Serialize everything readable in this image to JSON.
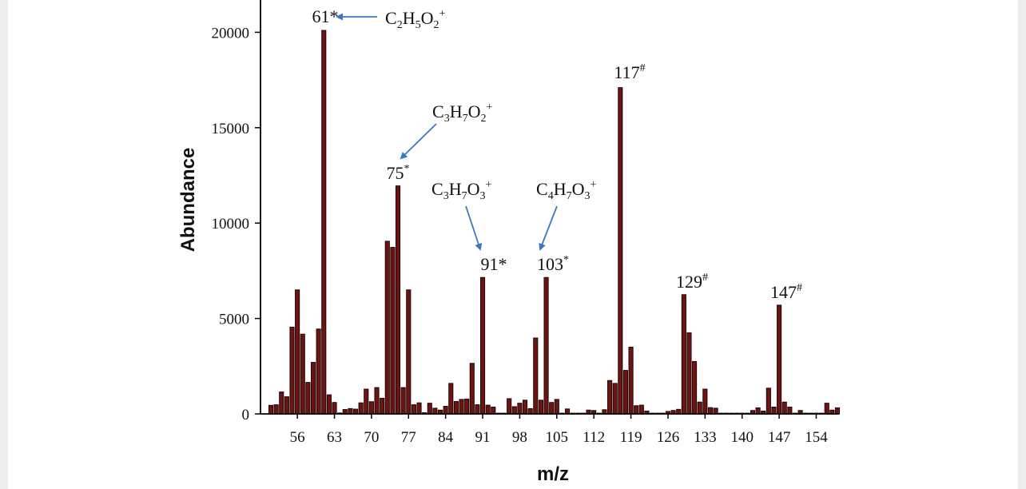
{
  "chart_data": {
    "type": "bar",
    "xlabel": "m/z",
    "ylabel": "Abundance",
    "xlim": [
      51,
      157.5
    ],
    "ylim": [
      0,
      21500
    ],
    "xticks": [
      56,
      63,
      70,
      77,
      84,
      91,
      98,
      105,
      112,
      119,
      126,
      133,
      140,
      147,
      154
    ],
    "yticks": [
      0,
      5000,
      10000,
      15000,
      20000
    ],
    "bar_color": "#6b1414",
    "annotation_color": "#3a78c0",
    "points": [
      {
        "x": 51,
        "y": 450
      },
      {
        "x": 52,
        "y": 480
      },
      {
        "x": 53,
        "y": 1150
      },
      {
        "x": 54,
        "y": 900
      },
      {
        "x": 55,
        "y": 4550
      },
      {
        "x": 56,
        "y": 6500
      },
      {
        "x": 57,
        "y": 4180
      },
      {
        "x": 58,
        "y": 1650
      },
      {
        "x": 59,
        "y": 2700
      },
      {
        "x": 60,
        "y": 4450
      },
      {
        "x": 61,
        "y": 20100
      },
      {
        "x": 62,
        "y": 1000
      },
      {
        "x": 63,
        "y": 600
      },
      {
        "x": 64,
        "y": 50
      },
      {
        "x": 65,
        "y": 230
      },
      {
        "x": 66,
        "y": 280
      },
      {
        "x": 67,
        "y": 250
      },
      {
        "x": 68,
        "y": 580
      },
      {
        "x": 69,
        "y": 1300
      },
      {
        "x": 70,
        "y": 640
      },
      {
        "x": 71,
        "y": 1380
      },
      {
        "x": 72,
        "y": 820
      },
      {
        "x": 73,
        "y": 9050
      },
      {
        "x": 74,
        "y": 8730
      },
      {
        "x": 75,
        "y": 11950
      },
      {
        "x": 76,
        "y": 1380
      },
      {
        "x": 77,
        "y": 6500
      },
      {
        "x": 78,
        "y": 480
      },
      {
        "x": 79,
        "y": 580
      },
      {
        "x": 80,
        "y": 60
      },
      {
        "x": 81,
        "y": 560
      },
      {
        "x": 82,
        "y": 300
      },
      {
        "x": 83,
        "y": 200
      },
      {
        "x": 84,
        "y": 400
      },
      {
        "x": 85,
        "y": 1600
      },
      {
        "x": 86,
        "y": 650
      },
      {
        "x": 87,
        "y": 760
      },
      {
        "x": 88,
        "y": 780
      },
      {
        "x": 89,
        "y": 2650
      },
      {
        "x": 90,
        "y": 480
      },
      {
        "x": 91,
        "y": 7150
      },
      {
        "x": 92,
        "y": 460
      },
      {
        "x": 93,
        "y": 360
      },
      {
        "x": 94,
        "y": 40
      },
      {
        "x": 95,
        "y": 40
      },
      {
        "x": 96,
        "y": 800
      },
      {
        "x": 97,
        "y": 380
      },
      {
        "x": 98,
        "y": 560
      },
      {
        "x": 99,
        "y": 720
      },
      {
        "x": 100,
        "y": 280
      },
      {
        "x": 101,
        "y": 3980
      },
      {
        "x": 102,
        "y": 720
      },
      {
        "x": 103,
        "y": 7150
      },
      {
        "x": 104,
        "y": 600
      },
      {
        "x": 105,
        "y": 760
      },
      {
        "x": 106,
        "y": 40
      },
      {
        "x": 107,
        "y": 260
      },
      {
        "x": 108,
        "y": 40
      },
      {
        "x": 109,
        "y": 40
      },
      {
        "x": 110,
        "y": 40
      },
      {
        "x": 111,
        "y": 200
      },
      {
        "x": 112,
        "y": 180
      },
      {
        "x": 113,
        "y": 40
      },
      {
        "x": 114,
        "y": 220
      },
      {
        "x": 115,
        "y": 1750
      },
      {
        "x": 116,
        "y": 1600
      },
      {
        "x": 117,
        "y": 17100
      },
      {
        "x": 118,
        "y": 2280
      },
      {
        "x": 119,
        "y": 3500
      },
      {
        "x": 120,
        "y": 430
      },
      {
        "x": 121,
        "y": 460
      },
      {
        "x": 122,
        "y": 150
      },
      {
        "x": 123,
        "y": 40
      },
      {
        "x": 124,
        "y": 40
      },
      {
        "x": 125,
        "y": 40
      },
      {
        "x": 126,
        "y": 130
      },
      {
        "x": 127,
        "y": 180
      },
      {
        "x": 128,
        "y": 240
      },
      {
        "x": 129,
        "y": 6250
      },
      {
        "x": 130,
        "y": 4250
      },
      {
        "x": 131,
        "y": 2750
      },
      {
        "x": 132,
        "y": 620
      },
      {
        "x": 133,
        "y": 1300
      },
      {
        "x": 134,
        "y": 330
      },
      {
        "x": 135,
        "y": 300
      },
      {
        "x": 136,
        "y": 40
      },
      {
        "x": 137,
        "y": 40
      },
      {
        "x": 138,
        "y": 40
      },
      {
        "x": 139,
        "y": 40
      },
      {
        "x": 140,
        "y": 40
      },
      {
        "x": 141,
        "y": 40
      },
      {
        "x": 142,
        "y": 180
      },
      {
        "x": 143,
        "y": 320
      },
      {
        "x": 144,
        "y": 150
      },
      {
        "x": 145,
        "y": 1350
      },
      {
        "x": 146,
        "y": 360
      },
      {
        "x": 147,
        "y": 5700
      },
      {
        "x": 148,
        "y": 620
      },
      {
        "x": 149,
        "y": 360
      },
      {
        "x": 150,
        "y": 40
      },
      {
        "x": 151,
        "y": 180
      },
      {
        "x": 152,
        "y": 40
      },
      {
        "x": 153,
        "y": 40
      },
      {
        "x": 154,
        "y": 40
      },
      {
        "x": 155,
        "y": 40
      },
      {
        "x": 156,
        "y": 560
      },
      {
        "x": 157,
        "y": 200
      },
      {
        "x": 158,
        "y": 320
      }
    ],
    "peak_labels": [
      {
        "id": "peak-61",
        "x": 61,
        "y": 20100,
        "text": "61*"
      },
      {
        "id": "peak-75",
        "x": 75,
        "y": 11950,
        "main": "75",
        "sup": "*"
      },
      {
        "id": "peak-91",
        "x": 91,
        "y": 7150,
        "text": "91*"
      },
      {
        "id": "peak-103",
        "x": 103,
        "y": 7150,
        "main": "103",
        "sup": "*"
      },
      {
        "id": "peak-117",
        "x": 117,
        "y": 17100,
        "main": "117",
        "sup": "#"
      },
      {
        "id": "peak-129",
        "x": 129,
        "y": 6250,
        "main": "129",
        "sup": "#"
      },
      {
        "id": "peak-147",
        "x": 147,
        "y": 5700,
        "main": "147",
        "sup": "#"
      }
    ],
    "annotations": [
      {
        "id": "ion-c2h5o2",
        "formula": [
          {
            "t": "C"
          },
          {
            "t": "2",
            "s": "sub"
          },
          {
            "t": "H"
          },
          {
            "t": "5",
            "s": "sub"
          },
          {
            "t": "O"
          },
          {
            "t": "2",
            "s": "sub"
          },
          {
            "t": "+",
            "s": "sup"
          }
        ],
        "points_to": 61
      },
      {
        "id": "ion-c3h7o2",
        "formula": [
          {
            "t": "C"
          },
          {
            "t": "3",
            "s": "sub"
          },
          {
            "t": "H"
          },
          {
            "t": "7",
            "s": "sub"
          },
          {
            "t": "O"
          },
          {
            "t": "2",
            "s": "sub"
          },
          {
            "t": "+",
            "s": "sup"
          }
        ],
        "points_to": 75
      },
      {
        "id": "ion-c3h7o3",
        "formula": [
          {
            "t": "C"
          },
          {
            "t": "3",
            "s": "sub"
          },
          {
            "t": "H"
          },
          {
            "t": "7",
            "s": "sub"
          },
          {
            "t": "O"
          },
          {
            "t": "3",
            "s": "sub"
          },
          {
            "t": "+",
            "s": "sup"
          }
        ],
        "points_to": 91
      },
      {
        "id": "ion-c4h7o3",
        "formula": [
          {
            "t": "C"
          },
          {
            "t": "4",
            "s": "sub"
          },
          {
            "t": "H"
          },
          {
            "t": "7",
            "s": "sub"
          },
          {
            "t": "O"
          },
          {
            "t": "3",
            "s": "sub"
          },
          {
            "t": "+",
            "s": "sup"
          }
        ],
        "points_to": 103
      }
    ]
  }
}
